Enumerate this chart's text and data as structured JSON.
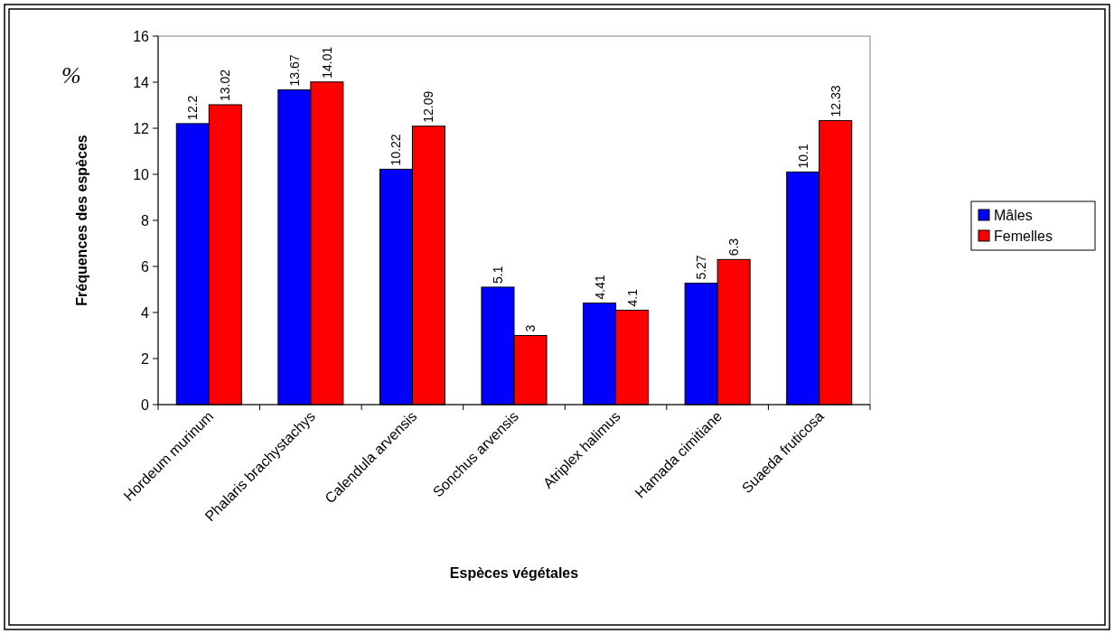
{
  "chart_data": {
    "type": "bar",
    "xlabel": "Espèces végétales",
    "ylabel": "Fréquences des espèces",
    "annotations": [
      "%"
    ],
    "categories": [
      "Hordeum murinum",
      "Phalaris brachystachys",
      "Calendula arvensis",
      "Sonchus arvensis",
      "Atriplex halimus",
      "Hamada cimitiane",
      "Suaeda fruticosa"
    ],
    "series": [
      {
        "name": "Mâles",
        "color": "#0000ff",
        "values": [
          12.2,
          13.67,
          10.22,
          5.1,
          4.41,
          5.27,
          10.1
        ]
      },
      {
        "name": "Femelles",
        "color": "#ff0000",
        "values": [
          13.02,
          14.01,
          12.09,
          3,
          4.1,
          6.3,
          12.33
        ]
      }
    ],
    "ylim": [
      0,
      16
    ],
    "yticks": [
      0,
      2,
      4,
      6,
      8,
      10,
      12,
      14,
      16
    ],
    "data_labels": true,
    "legend": "right",
    "grid": false
  }
}
